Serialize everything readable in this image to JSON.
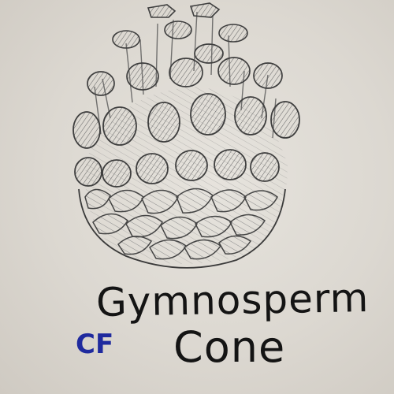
{
  "drawing": {
    "subject_icon": "pine-cone-sketch-icon",
    "caption_line1": "Gymnosperm",
    "caption_line2": "Cone",
    "initials": "CF",
    "initials_color": "#1f2a9e",
    "ink_color": "#141414",
    "pencil_color": "#4a4a4a",
    "paper_color": "#e3e0da"
  }
}
